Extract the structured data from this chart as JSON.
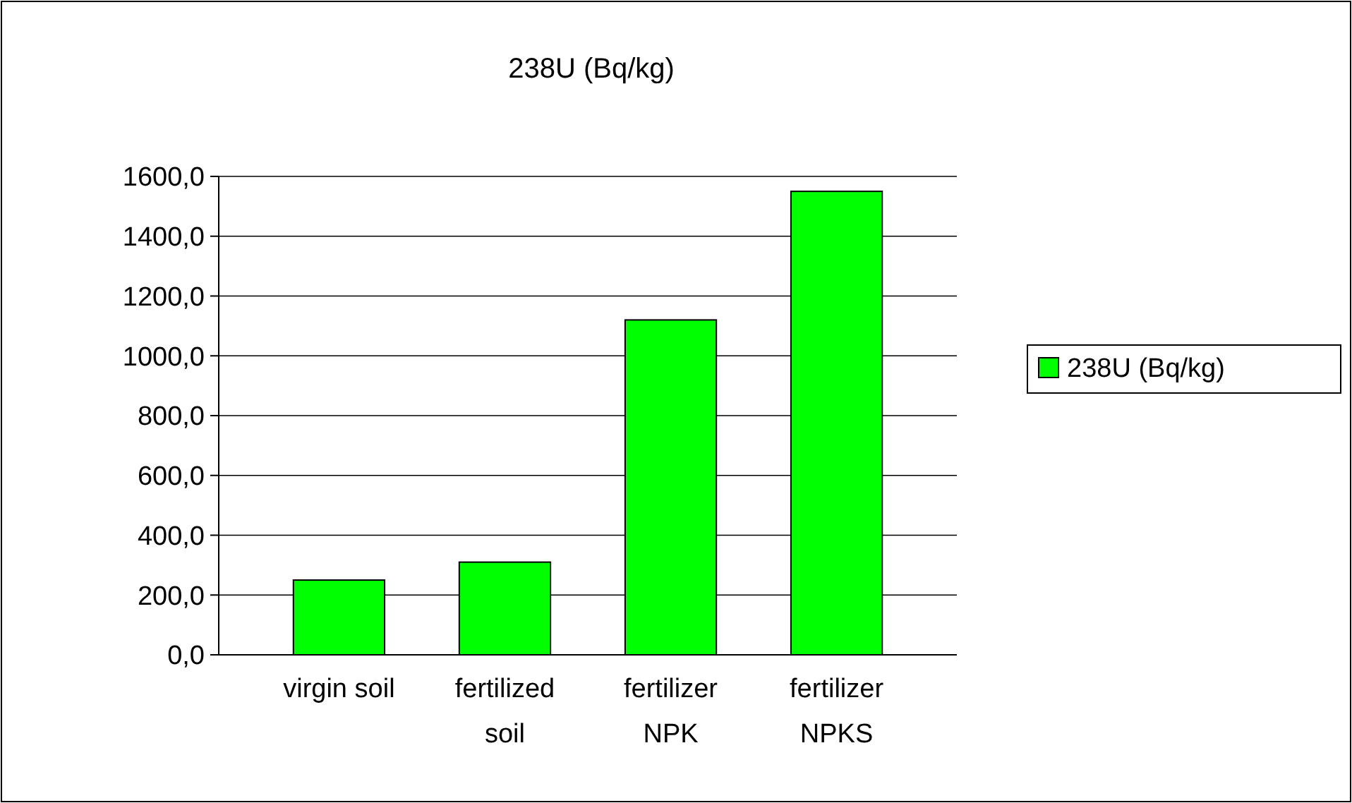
{
  "chart_data": {
    "type": "bar",
    "title": "238U (Bq/kg)",
    "categories": [
      "virgin soil",
      "fertilized soil",
      "fertilizer NPK",
      "fertilizer NPKS"
    ],
    "series": [
      {
        "name": "238U (Bq/kg)",
        "color": "#00ff00",
        "values": [
          250,
          310,
          1120,
          1550
        ]
      }
    ],
    "ylim": [
      0,
      1600
    ],
    "yticks": [
      {
        "value": 0,
        "label": "0,0"
      },
      {
        "value": 200,
        "label": "200,0"
      },
      {
        "value": 400,
        "label": "400,0"
      },
      {
        "value": 600,
        "label": "600,0"
      },
      {
        "value": 800,
        "label": "800,0"
      },
      {
        "value": 1000,
        "label": "1000,0"
      },
      {
        "value": 1200,
        "label": "1200,0"
      },
      {
        "value": 1400,
        "label": "1400,0"
      },
      {
        "value": 1600,
        "label": "1600,0"
      }
    ],
    "grid": "y",
    "legend": "right"
  }
}
